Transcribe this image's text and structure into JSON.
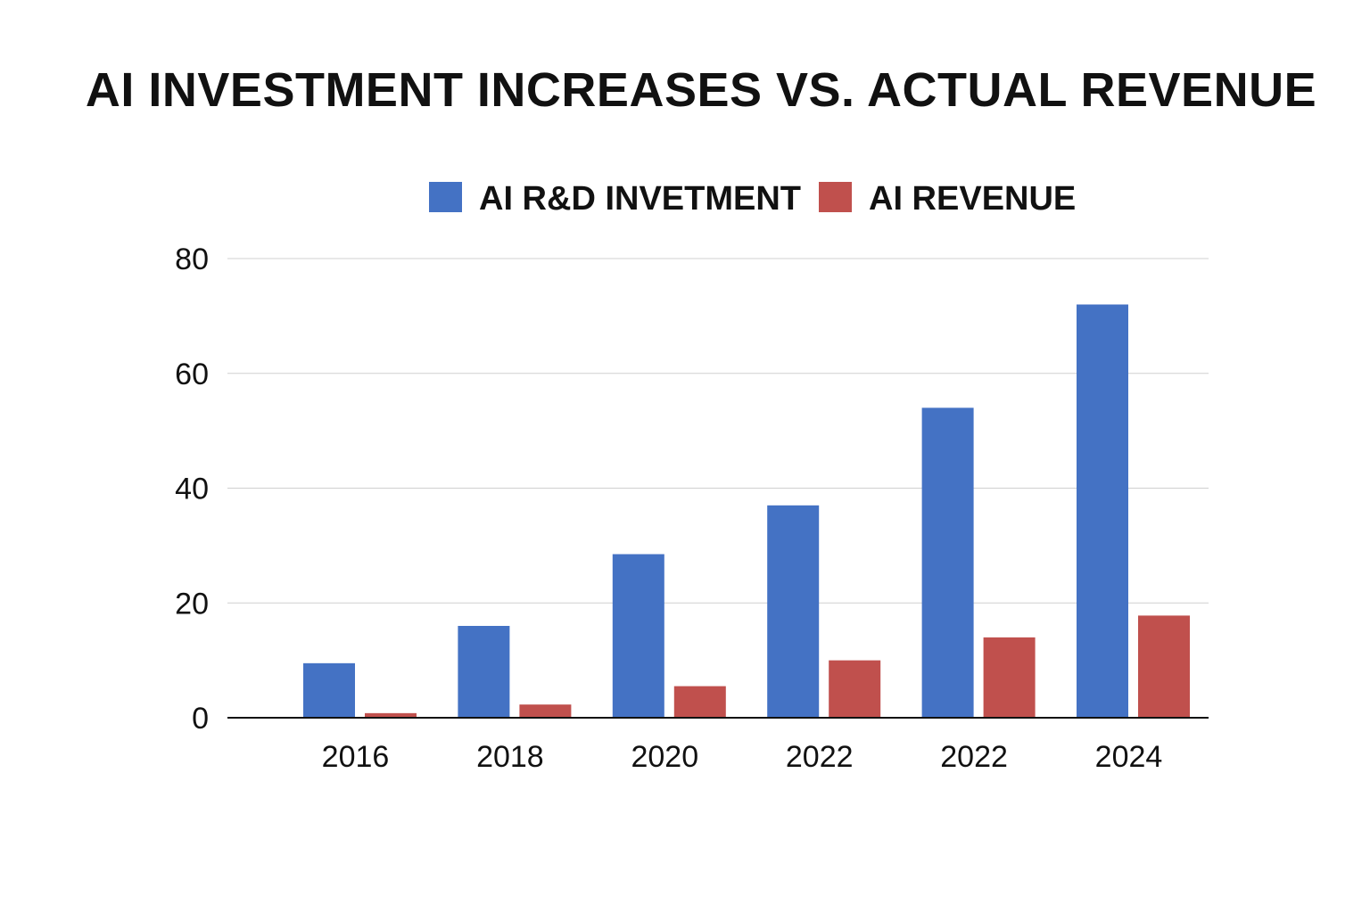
{
  "chart_data": {
    "type": "bar",
    "title": "AI INVESTMENT INCREASES VS. ACTUAL REVENUE",
    "xlabel": "",
    "ylabel": "",
    "categories": [
      "2016",
      "2018",
      "2020",
      "2022",
      "2022",
      "2024"
    ],
    "series": [
      {
        "name": "AI R&D INVETMENT",
        "color": "#4472c4",
        "values": [
          9.5,
          16,
          28.5,
          37,
          54,
          72
        ]
      },
      {
        "name": "AI REVENUE",
        "color": "#c0504d",
        "values": [
          0.8,
          2.3,
          5.5,
          10,
          14,
          17.8
        ]
      }
    ],
    "ylim": [
      0,
      80
    ],
    "yticks": [
      "0",
      "20",
      "40",
      "60",
      "80"
    ],
    "grid": true,
    "legend_position": "top-center"
  }
}
